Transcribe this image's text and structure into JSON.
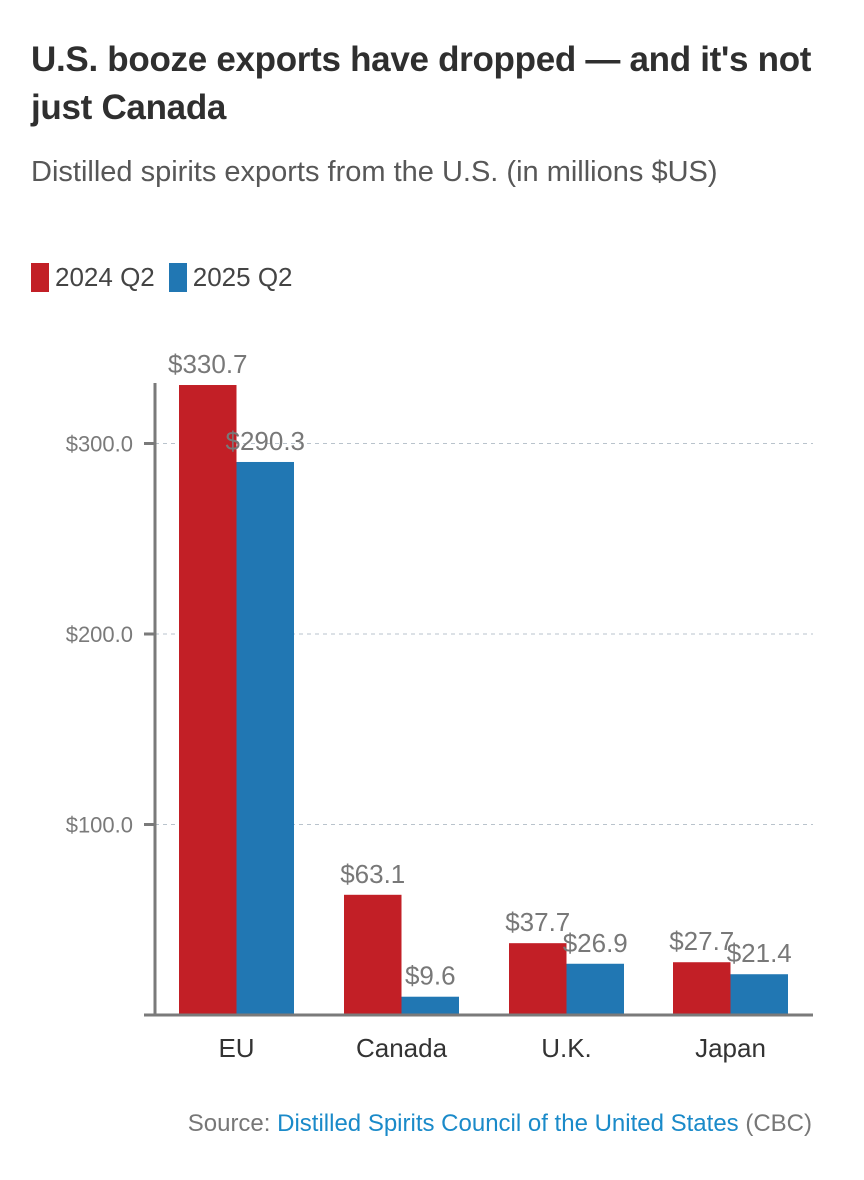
{
  "header": {
    "title": "U.S. booze exports have dropped — and it's not just Canada",
    "subtitle": "Distilled spirits exports from the U.S. (in millions $US)"
  },
  "legend": {
    "items": [
      {
        "label": "2024 Q2",
        "color": "#c21f26"
      },
      {
        "label": "2025 Q2",
        "color": "#2177b3"
      }
    ]
  },
  "source": {
    "prefix": "Source: ",
    "link_text": "Distilled Spirits Council of the United States",
    "suffix": " (CBC)"
  },
  "chart_data": {
    "type": "bar",
    "title": "U.S. booze exports have dropped — and it's not just Canada",
    "subtitle": "Distilled spirits exports from the U.S. (in millions $US)",
    "xlabel": "",
    "ylabel": "",
    "categories": [
      "EU",
      "Canada",
      "U.K.",
      "Japan"
    ],
    "series": [
      {
        "name": "2024 Q2",
        "color": "#c21f26",
        "values": [
          330.7,
          63.1,
          37.7,
          27.7
        ],
        "labels": [
          "$330.7",
          "$63.1",
          "$37.7",
          "$27.7"
        ]
      },
      {
        "name": "2025 Q2",
        "color": "#2177b3",
        "values": [
          290.3,
          9.6,
          26.9,
          21.4
        ],
        "labels": [
          "$290.3",
          "$9.6",
          "$26.9",
          "$21.4"
        ]
      }
    ],
    "yticks": [
      100,
      200,
      300
    ],
    "ytick_labels": [
      "$100.0",
      "$200.0",
      "$300.0"
    ],
    "ylim": [
      0,
      330.7
    ],
    "grid": true,
    "legend_position": "top-left"
  }
}
